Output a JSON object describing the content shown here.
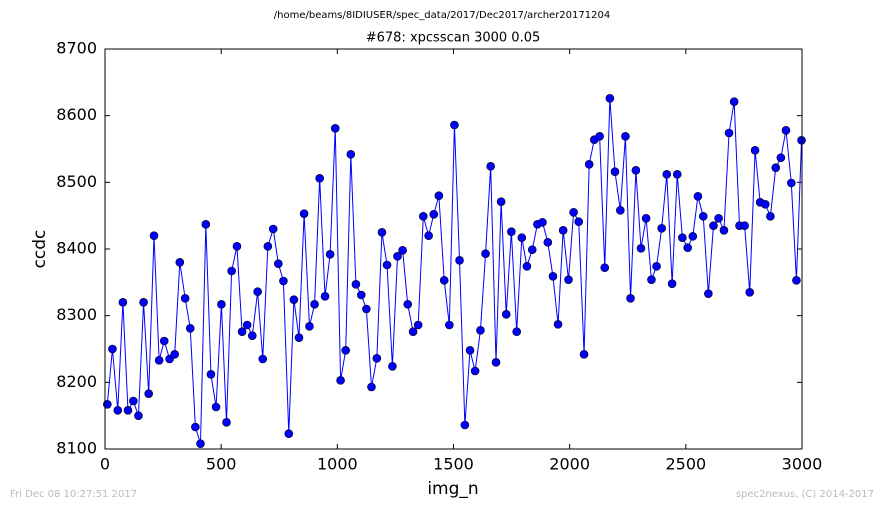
{
  "chart_data": {
    "type": "line",
    "title": "/home/beams/8IDIUSER/spec_data/2017/Dec2017/archer20171204",
    "subtitle": "#678: xpcsscan 3000 0.05",
    "x_label": "img_n",
    "y_label": "ccdc",
    "footer_left": "Fri Dec 08 10:27:51 2017",
    "footer_right": "spec2nexus, (C) 2014-2017",
    "xlim": [
      0,
      3000
    ],
    "xticks": [
      0,
      500,
      1000,
      1500,
      2000,
      2500,
      3000
    ],
    "ylim": [
      8100,
      8700
    ],
    "yticks": [
      8100,
      8200,
      8300,
      8400,
      8500,
      8600,
      8700
    ],
    "grid": false,
    "x": [
      10,
      32,
      55,
      77,
      99,
      122,
      144,
      166,
      188,
      211,
      233,
      255,
      278,
      300,
      322,
      345,
      367,
      389,
      411,
      434,
      456,
      478,
      501,
      523,
      545,
      568,
      590,
      612,
      634,
      657,
      679,
      701,
      724,
      746,
      768,
      791,
      813,
      835,
      857,
      880,
      902,
      924,
      947,
      969,
      991,
      1014,
      1036,
      1058,
      1080,
      1103,
      1125,
      1147,
      1170,
      1192,
      1214,
      1237,
      1259,
      1281,
      1303,
      1326,
      1348,
      1370,
      1393,
      1415,
      1437,
      1460,
      1482,
      1504,
      1526,
      1549,
      1571,
      1593,
      1616,
      1638,
      1660,
      1683,
      1705,
      1727,
      1749,
      1772,
      1794,
      1816,
      1839,
      1861,
      1883,
      1906,
      1928,
      1950,
      1972,
      1995,
      2017,
      2039,
      2062,
      2084,
      2106,
      2129,
      2151,
      2173,
      2195,
      2218,
      2240,
      2262,
      2285,
      2307,
      2329,
      2352,
      2374,
      2396,
      2418,
      2441,
      2463,
      2485,
      2508,
      2530,
      2552,
      2575,
      2597,
      2619,
      2641,
      2664,
      2686,
      2708,
      2731,
      2753,
      2775,
      2798,
      2820,
      2842,
      2864,
      2887,
      2909,
      2931,
      2954,
      2976,
      2998
    ],
    "series": [
      {
        "name": "ccdc",
        "color": "#0000ff",
        "values": [
          8167,
          8250,
          8158,
          8320,
          8158,
          8172,
          8150,
          8320,
          8183,
          8420,
          8233,
          8262,
          8235,
          8242,
          8380,
          8326,
          8281,
          8133,
          8108,
          8437,
          8212,
          8163,
          8317,
          8140,
          8367,
          8404,
          8276,
          8286,
          8270,
          8336,
          8235,
          8404,
          8430,
          8378,
          8352,
          8123,
          8324,
          8267,
          8453,
          8284,
          8317,
          8506,
          8329,
          8392,
          8581,
          8203,
          8248,
          8542,
          8347,
          8331,
          8310,
          8193,
          8236,
          8425,
          8376,
          8224,
          8389,
          8398,
          8317,
          8276,
          8286,
          8449,
          8420,
          8452,
          8480,
          8353,
          8286,
          8586,
          8383,
          8136,
          8248,
          8217,
          8278,
          8393,
          8524,
          8230,
          8471,
          8302,
          8426,
          8276,
          8417,
          8374,
          8399,
          8437,
          8440,
          8410,
          8359,
          8287,
          8428,
          8354,
          8455,
          8441,
          8242,
          8527,
          8564,
          8569,
          8372,
          8626,
          8516,
          8458,
          8569,
          8326,
          8518,
          8401,
          8446,
          8354,
          8374,
          8431,
          8512,
          8348,
          8512,
          8417,
          8402,
          8419,
          8479,
          8449,
          8333,
          8435,
          8446,
          8428,
          8574,
          8621,
          8435,
          8435,
          8335,
          8548,
          8470,
          8467,
          8449,
          8522,
          8537,
          8578,
          8499,
          8353,
          8563
        ]
      }
    ]
  }
}
